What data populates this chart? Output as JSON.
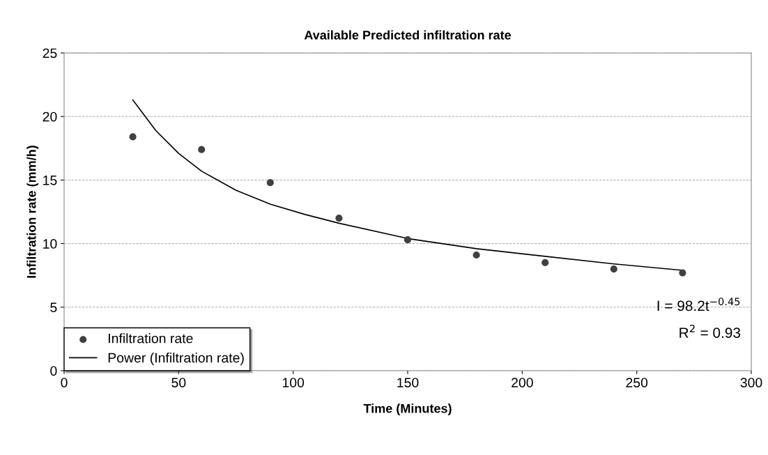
{
  "chart_data": {
    "type": "scatter",
    "title": "Available Predicted infiltration rate",
    "xlabel": "Time (Minutes)",
    "ylabel": "Infiltration rate (mm/h)",
    "xlim": [
      0,
      300
    ],
    "xticks": [
      0,
      50,
      100,
      150,
      200,
      250,
      300
    ],
    "ylim": [
      0,
      25
    ],
    "yticks": [
      0,
      5,
      10,
      15,
      20,
      25
    ],
    "grid": "y",
    "legend": "bottom left",
    "series": [
      {
        "name": "Infiltration rate",
        "marker": "circle",
        "color": "#404040",
        "x": [
          30,
          60,
          90,
          120,
          150,
          180,
          210,
          240,
          270
        ],
        "values": [
          18.4,
          17.4,
          14.8,
          12.0,
          10.3,
          9.1,
          8.5,
          8.0,
          7.7
        ]
      },
      {
        "name": "Power (Infiltration rate)",
        "type": "line",
        "marker": "none",
        "line_style": "solid",
        "color": "#000000",
        "x": [
          30,
          40,
          50,
          60,
          75,
          90,
          105,
          120,
          150,
          180,
          210,
          240,
          270
        ],
        "values": [
          21.3,
          18.9,
          17.1,
          15.7,
          14.2,
          13.1,
          12.3,
          11.6,
          10.4,
          9.6,
          9.0,
          8.4,
          7.9
        ]
      }
    ],
    "annotations": [
      "I = 98.2t$^{−0.45}$",
      "R$^{2}$ = 0.93"
    ]
  }
}
